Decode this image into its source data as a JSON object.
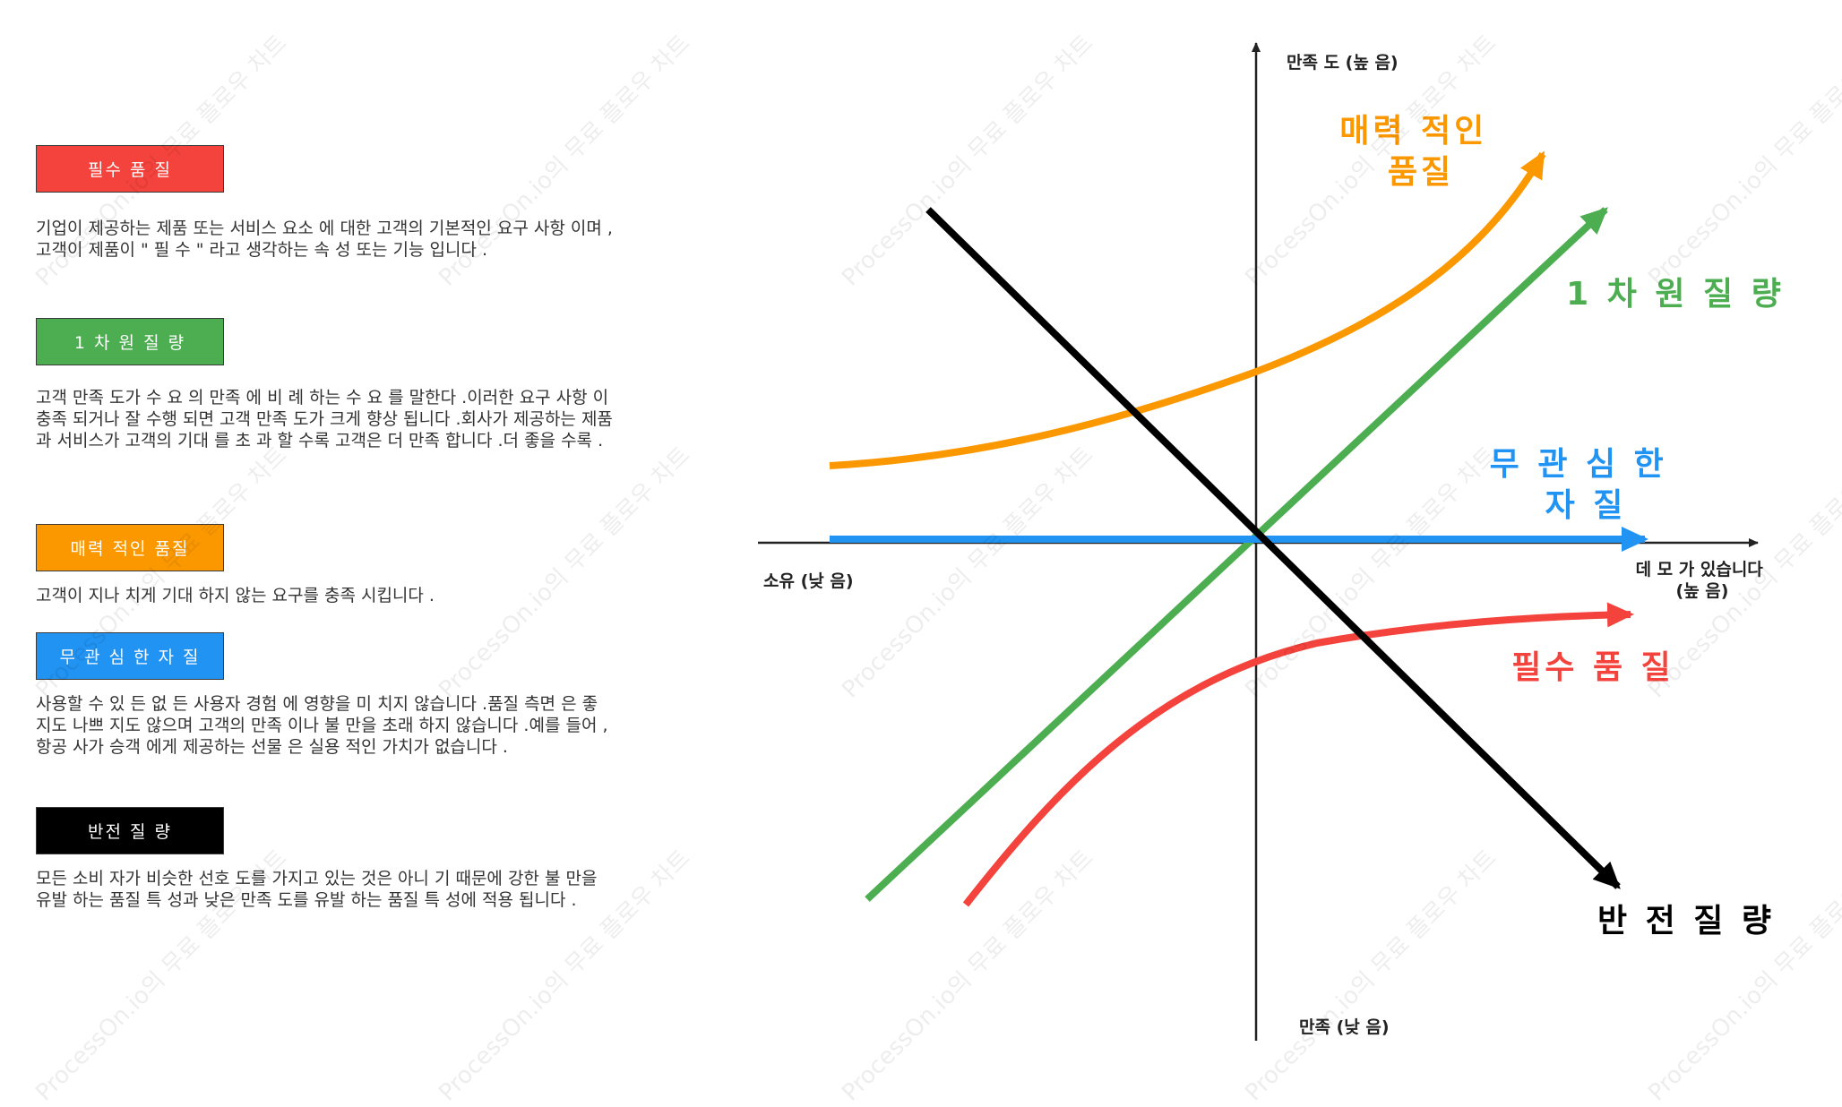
{
  "legend": [
    {
      "label": "필수 품 질",
      "color": "#f4433c",
      "desc": [
        "기업이 제공하는 제품 또는 서비스 요소 에 대한 고객의 기본적인 요구 사항 이며 ,",
        "고객이 제품이 \" 필 수 \" 라고 생각하는 속 성 또는 기능 입니다 ."
      ]
    },
    {
      "label": "1 차 원 질 량",
      "color": "#4cae50",
      "desc": [
        "고객 만족 도가 수 요 의 만족 에 비 례 하는 수 요 를 말한다 .이러한 요구 사항 이",
        "충족 되거나 잘 수행 되면 고객 만족 도가 크게 향상 됩니다 .회사가 제공하는 제품",
        "과 서비스가 고객의 기대 를 초 과 할 수록 고객은 더 만족 합니다 .더 좋을 수록 ."
      ]
    },
    {
      "label": "매력 적인 품질",
      "color": "#fb9800",
      "desc": [
        "고객이 지나 치게 기대 하지 않는 요구를 충족 시킵니다 ."
      ]
    },
    {
      "label": "무 관 심 한 자 질",
      "color": "#2193f3",
      "desc": [
        "사용할 수 있 든 없 든 사용자 경험 에 영향을 미 치지 않습니다 .품질 측면 은 좋",
        "지도 나쁘 지도 않으며 고객의 만족 이나 불 만을 초래 하지 않습니다 .예를 들어 ,",
        "항공 사가 승객 에게 제공하는 선물 은 실용 적인 가치가 없습니다 ."
      ]
    },
    {
      "label": "반전 질 량",
      "color": "#000000",
      "desc": [
        "모든 소비 자가 비슷한 선호 도를 가지고 있는 것은 아니 기 때문에 강한 불 만을",
        "유발 하는 품질 특 성과 낮은 만족 도를 유발 하는 품질 특 성에 적용 됩니다 ."
      ]
    }
  ],
  "axes": {
    "y_top": "만족 도 (높 음)",
    "y_bottom": "만족 (낮 음)",
    "x_left": "소유 (낮 음)",
    "x_right": [
      "데 모 가 있습니다",
      "(높 음)"
    ]
  },
  "curves": [
    {
      "id": "attractive",
      "label": [
        "매력 적인",
        "품질"
      ],
      "color": "#fb9800"
    },
    {
      "id": "one-dimensional",
      "label": [
        "1 차 원 질 량"
      ],
      "color": "#4cae50"
    },
    {
      "id": "indifferent",
      "label": [
        "무 관 심 한",
        "자 질"
      ],
      "color": "#2193f3"
    },
    {
      "id": "must-be",
      "label": [
        "필수 품 질"
      ],
      "color": "#f4433c"
    },
    {
      "id": "reverse",
      "label": [
        "반 전 질 량"
      ],
      "color": "#000000"
    }
  ],
  "watermark": "ProcessOn.io의 무료 플로우 차트"
}
